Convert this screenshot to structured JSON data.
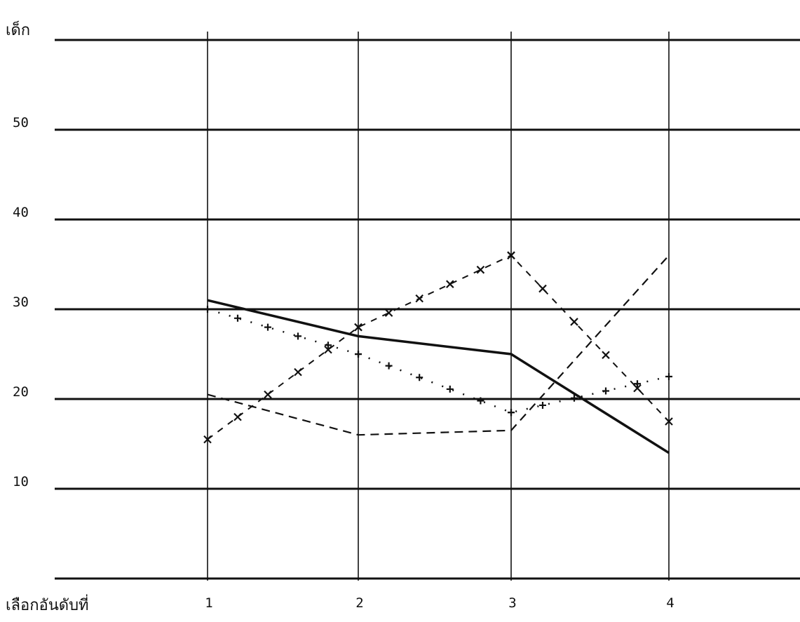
{
  "chart_data": {
    "type": "line",
    "title": "",
    "ylabel": "เด็ก",
    "xlabel": "เลือกอันดับที่",
    "x": [
      1,
      2,
      3,
      4
    ],
    "xticks": [
      "1",
      "2",
      "3",
      "4"
    ],
    "yticks": [
      "10",
      "20",
      "30",
      "40",
      "50"
    ],
    "ylim": [
      0,
      60
    ],
    "grid": true,
    "series": [
      {
        "style": "solid",
        "values": [
          31,
          27,
          25,
          14
        ]
      },
      {
        "style": "dashed",
        "values": [
          20.5,
          16,
          16.5,
          36
        ]
      },
      {
        "style": "x-dash",
        "values": [
          15.5,
          28,
          36,
          17.5
        ]
      },
      {
        "style": "plus-dot",
        "values": [
          30,
          25,
          18.5,
          22.5
        ]
      }
    ]
  }
}
